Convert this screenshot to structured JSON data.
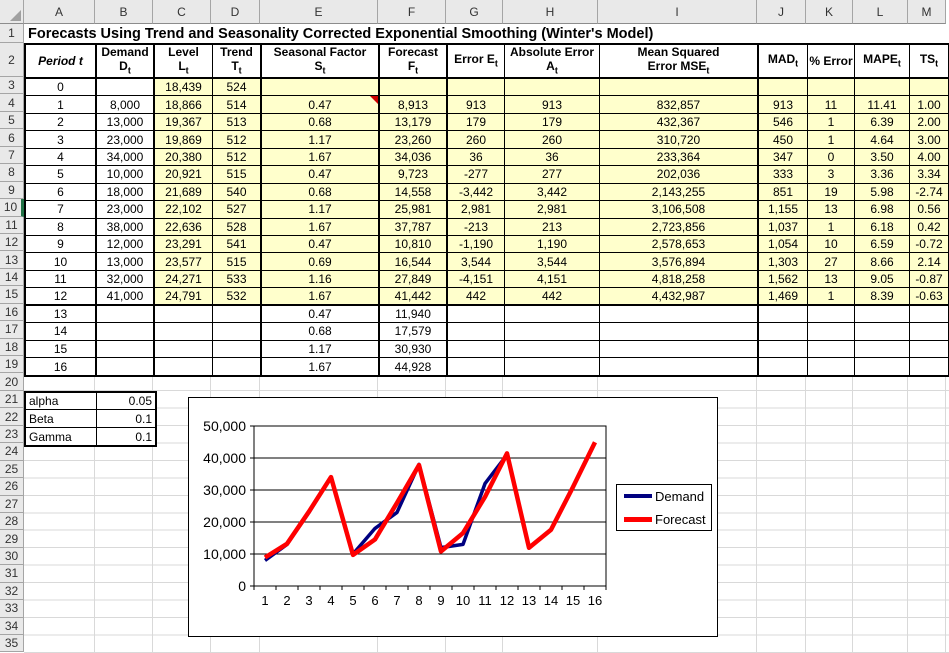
{
  "sheet": {
    "title": "Forecasts Using Trend and Seasonality Corrected Exponential Smoothing (Winter's Model)",
    "column_letters": [
      "A",
      "B",
      "C",
      "D",
      "E",
      "F",
      "G",
      "H",
      "I",
      "J",
      "K",
      "L",
      "M"
    ],
    "row_numbers": [
      "1",
      "2",
      "3",
      "4",
      "5",
      "6",
      "7",
      "8",
      "9",
      "10",
      "11",
      "12",
      "13",
      "14",
      "15",
      "16",
      "17",
      "18",
      "19",
      "20",
      "21",
      "22",
      "23",
      "24",
      "25",
      "26",
      "27",
      "28",
      "29",
      "30",
      "31",
      "32",
      "33",
      "34",
      "35"
    ],
    "active_row": "10"
  },
  "table": {
    "columns": [
      {
        "top": "",
        "main": "Period t",
        "sub": "",
        "italic": true
      },
      {
        "top": "Demand",
        "main": "D",
        "sub": "t",
        "italic": false
      },
      {
        "top": "Level",
        "main": "L",
        "sub": "t",
        "italic": false
      },
      {
        "top": "Trend",
        "main": "T",
        "sub": "t",
        "italic": false
      },
      {
        "top": "Seasonal Factor",
        "main": "S",
        "sub": "t",
        "italic": false
      },
      {
        "top": "Forecast",
        "main": "F",
        "sub": "t",
        "italic": false
      },
      {
        "top": "",
        "main": "Error E",
        "sub": "t",
        "italic": false
      },
      {
        "top": "Absolute Error",
        "main": "A",
        "sub": "t",
        "italic": false
      },
      {
        "top": "Mean Squared",
        "main": "Error MSE",
        "sub": "t",
        "italic": false
      },
      {
        "top": "",
        "main": "MAD",
        "sub": "t",
        "italic": false
      },
      {
        "top": "",
        "main": "% Error",
        "sub": "",
        "italic": false
      },
      {
        "top": "",
        "main": "MAPE",
        "sub": "t",
        "italic": false
      },
      {
        "top": "",
        "main": "TS",
        "sub": "t",
        "italic": false
      }
    ],
    "rows": [
      [
        "0",
        "",
        "18,439",
        "524",
        "",
        "",
        "",
        "",
        "",
        "",
        "",
        "",
        ""
      ],
      [
        "1",
        "8,000",
        "18,866",
        "514",
        "0.47",
        "8,913",
        "913",
        "913",
        "832,857",
        "913",
        "11",
        "11.41",
        "1.00"
      ],
      [
        "2",
        "13,000",
        "19,367",
        "513",
        "0.68",
        "13,179",
        "179",
        "179",
        "432,367",
        "546",
        "1",
        "6.39",
        "2.00"
      ],
      [
        "3",
        "23,000",
        "19,869",
        "512",
        "1.17",
        "23,260",
        "260",
        "260",
        "310,720",
        "450",
        "1",
        "4.64",
        "3.00"
      ],
      [
        "4",
        "34,000",
        "20,380",
        "512",
        "1.67",
        "34,036",
        "36",
        "36",
        "233,364",
        "347",
        "0",
        "3.50",
        "4.00"
      ],
      [
        "5",
        "10,000",
        "20,921",
        "515",
        "0.47",
        "9,723",
        "-277",
        "277",
        "202,036",
        "333",
        "3",
        "3.36",
        "3.34"
      ],
      [
        "6",
        "18,000",
        "21,689",
        "540",
        "0.68",
        "14,558",
        "-3,442",
        "3,442",
        "2,143,255",
        "851",
        "19",
        "5.98",
        "-2.74"
      ],
      [
        "7",
        "23,000",
        "22,102",
        "527",
        "1.17",
        "25,981",
        "2,981",
        "2,981",
        "3,106,508",
        "1,155",
        "13",
        "6.98",
        "0.56"
      ],
      [
        "8",
        "38,000",
        "22,636",
        "528",
        "1.67",
        "37,787",
        "-213",
        "213",
        "2,723,856",
        "1,037",
        "1",
        "6.18",
        "0.42"
      ],
      [
        "9",
        "12,000",
        "23,291",
        "541",
        "0.47",
        "10,810",
        "-1,190",
        "1,190",
        "2,578,653",
        "1,054",
        "10",
        "6.59",
        "-0.72"
      ],
      [
        "10",
        "13,000",
        "23,577",
        "515",
        "0.69",
        "16,544",
        "3,544",
        "3,544",
        "3,576,894",
        "1,303",
        "27",
        "8.66",
        "2.14"
      ],
      [
        "11",
        "32,000",
        "24,271",
        "533",
        "1.16",
        "27,849",
        "-4,151",
        "4,151",
        "4,818,258",
        "1,562",
        "13",
        "9.05",
        "-0.87"
      ],
      [
        "12",
        "41,000",
        "24,791",
        "532",
        "1.67",
        "41,442",
        "442",
        "442",
        "4,432,987",
        "1,469",
        "1",
        "8.39",
        "-0.63"
      ],
      [
        "13",
        "",
        "",
        "",
        "0.47",
        "11,940",
        "",
        "",
        "",
        "",
        "",
        "",
        ""
      ],
      [
        "14",
        "",
        "",
        "",
        "0.68",
        "17,579",
        "",
        "",
        "",
        "",
        "",
        "",
        ""
      ],
      [
        "15",
        "",
        "",
        "",
        "1.17",
        "30,930",
        "",
        "",
        "",
        "",
        "",
        "",
        ""
      ],
      [
        "16",
        "",
        "",
        "",
        "1.67",
        "44,928",
        "",
        "",
        "",
        "",
        "",
        "",
        ""
      ]
    ],
    "comment_cell": {
      "row": 1,
      "col": 4
    }
  },
  "params": [
    {
      "label": "alpha",
      "value": "0.05"
    },
    {
      "label": "Beta",
      "value": "0.1"
    },
    {
      "label": "Gamma",
      "value": "0.1"
    }
  ],
  "chart_data": {
    "type": "line",
    "x": [
      1,
      2,
      3,
      4,
      5,
      6,
      7,
      8,
      9,
      10,
      11,
      12,
      13,
      14,
      15,
      16
    ],
    "series": [
      {
        "name": "Demand",
        "color": "#000080",
        "width": 3.5,
        "values": [
          8000,
          13000,
          23000,
          34000,
          10000,
          18000,
          23000,
          38000,
          12000,
          13000,
          32000,
          41000
        ]
      },
      {
        "name": "Forecast",
        "color": "#FF0000",
        "width": 4.5,
        "values": [
          8913,
          13179,
          23260,
          34036,
          9723,
          14558,
          25981,
          37787,
          10810,
          16544,
          27849,
          41442,
          11940,
          17579,
          30930,
          44928
        ]
      }
    ],
    "title": "",
    "xlabel": "",
    "ylabel": "",
    "ylim": [
      0,
      50000
    ],
    "ytick_step": 10000,
    "grid": true,
    "legend_position": "right"
  },
  "colors": {
    "cell_fill": "#FFFFCC",
    "active_row_accent": "#217346",
    "demand_line": "#000080",
    "forecast_line": "#FF0000"
  }
}
